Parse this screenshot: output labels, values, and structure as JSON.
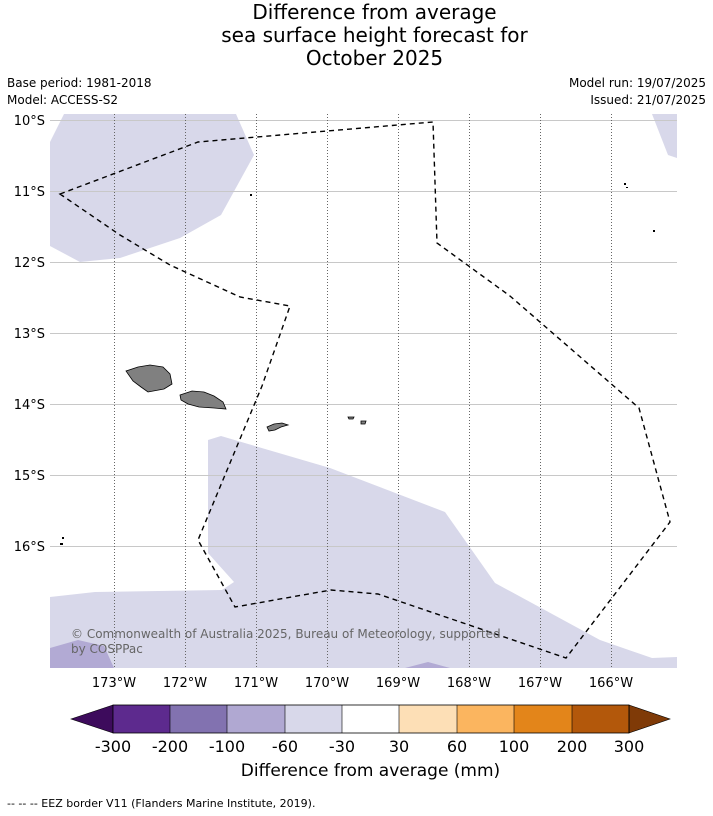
{
  "title_lines": [
    "Difference from average",
    "sea surface height forecast for",
    "October 2025"
  ],
  "meta": {
    "base_period": "Base period: 1981-2018",
    "model": "Model: ACCESS-S2",
    "model_run": "Model run: 19/07/2025",
    "issued": "Issued: 21/07/2025"
  },
  "map": {
    "lat_labels": [
      "10°S",
      "11°S",
      "12°S",
      "13°S",
      "14°S",
      "15°S",
      "16°S"
    ],
    "lon_labels": [
      "173°W",
      "172°W",
      "171°W",
      "170°W",
      "169°W",
      "168°W",
      "167°W",
      "166°W"
    ],
    "copyright_lines": [
      "© Commonwealth of Australia 2025, Bureau of Meteorology, supported",
      "by COSPPac"
    ],
    "colors": {
      "ocean_default": "#ffffff",
      "anomaly_-60_-30": "#d8d8ea",
      "anomaly_-100_-60": "#b2aad4",
      "land": "#808080",
      "eez_line": "#000000"
    }
  },
  "colorbar": {
    "title": "Difference from average (mm)",
    "tick_labels": [
      "-300",
      "-200",
      "-100",
      "-60",
      "-30",
      "30",
      "60",
      "100",
      "200",
      "300"
    ],
    "colors": [
      "#3d0b5c",
      "#5d2a8e",
      "#8272b0",
      "#b0a8d2",
      "#d8d8ea",
      "#ffffff",
      "#fddfb6",
      "#fbb55f",
      "#e3851a",
      "#b3580b",
      "#7f3a07"
    ]
  },
  "footer": "--  --  -- EEZ border V11 (Flanders Marine Institute, 2019)."
}
